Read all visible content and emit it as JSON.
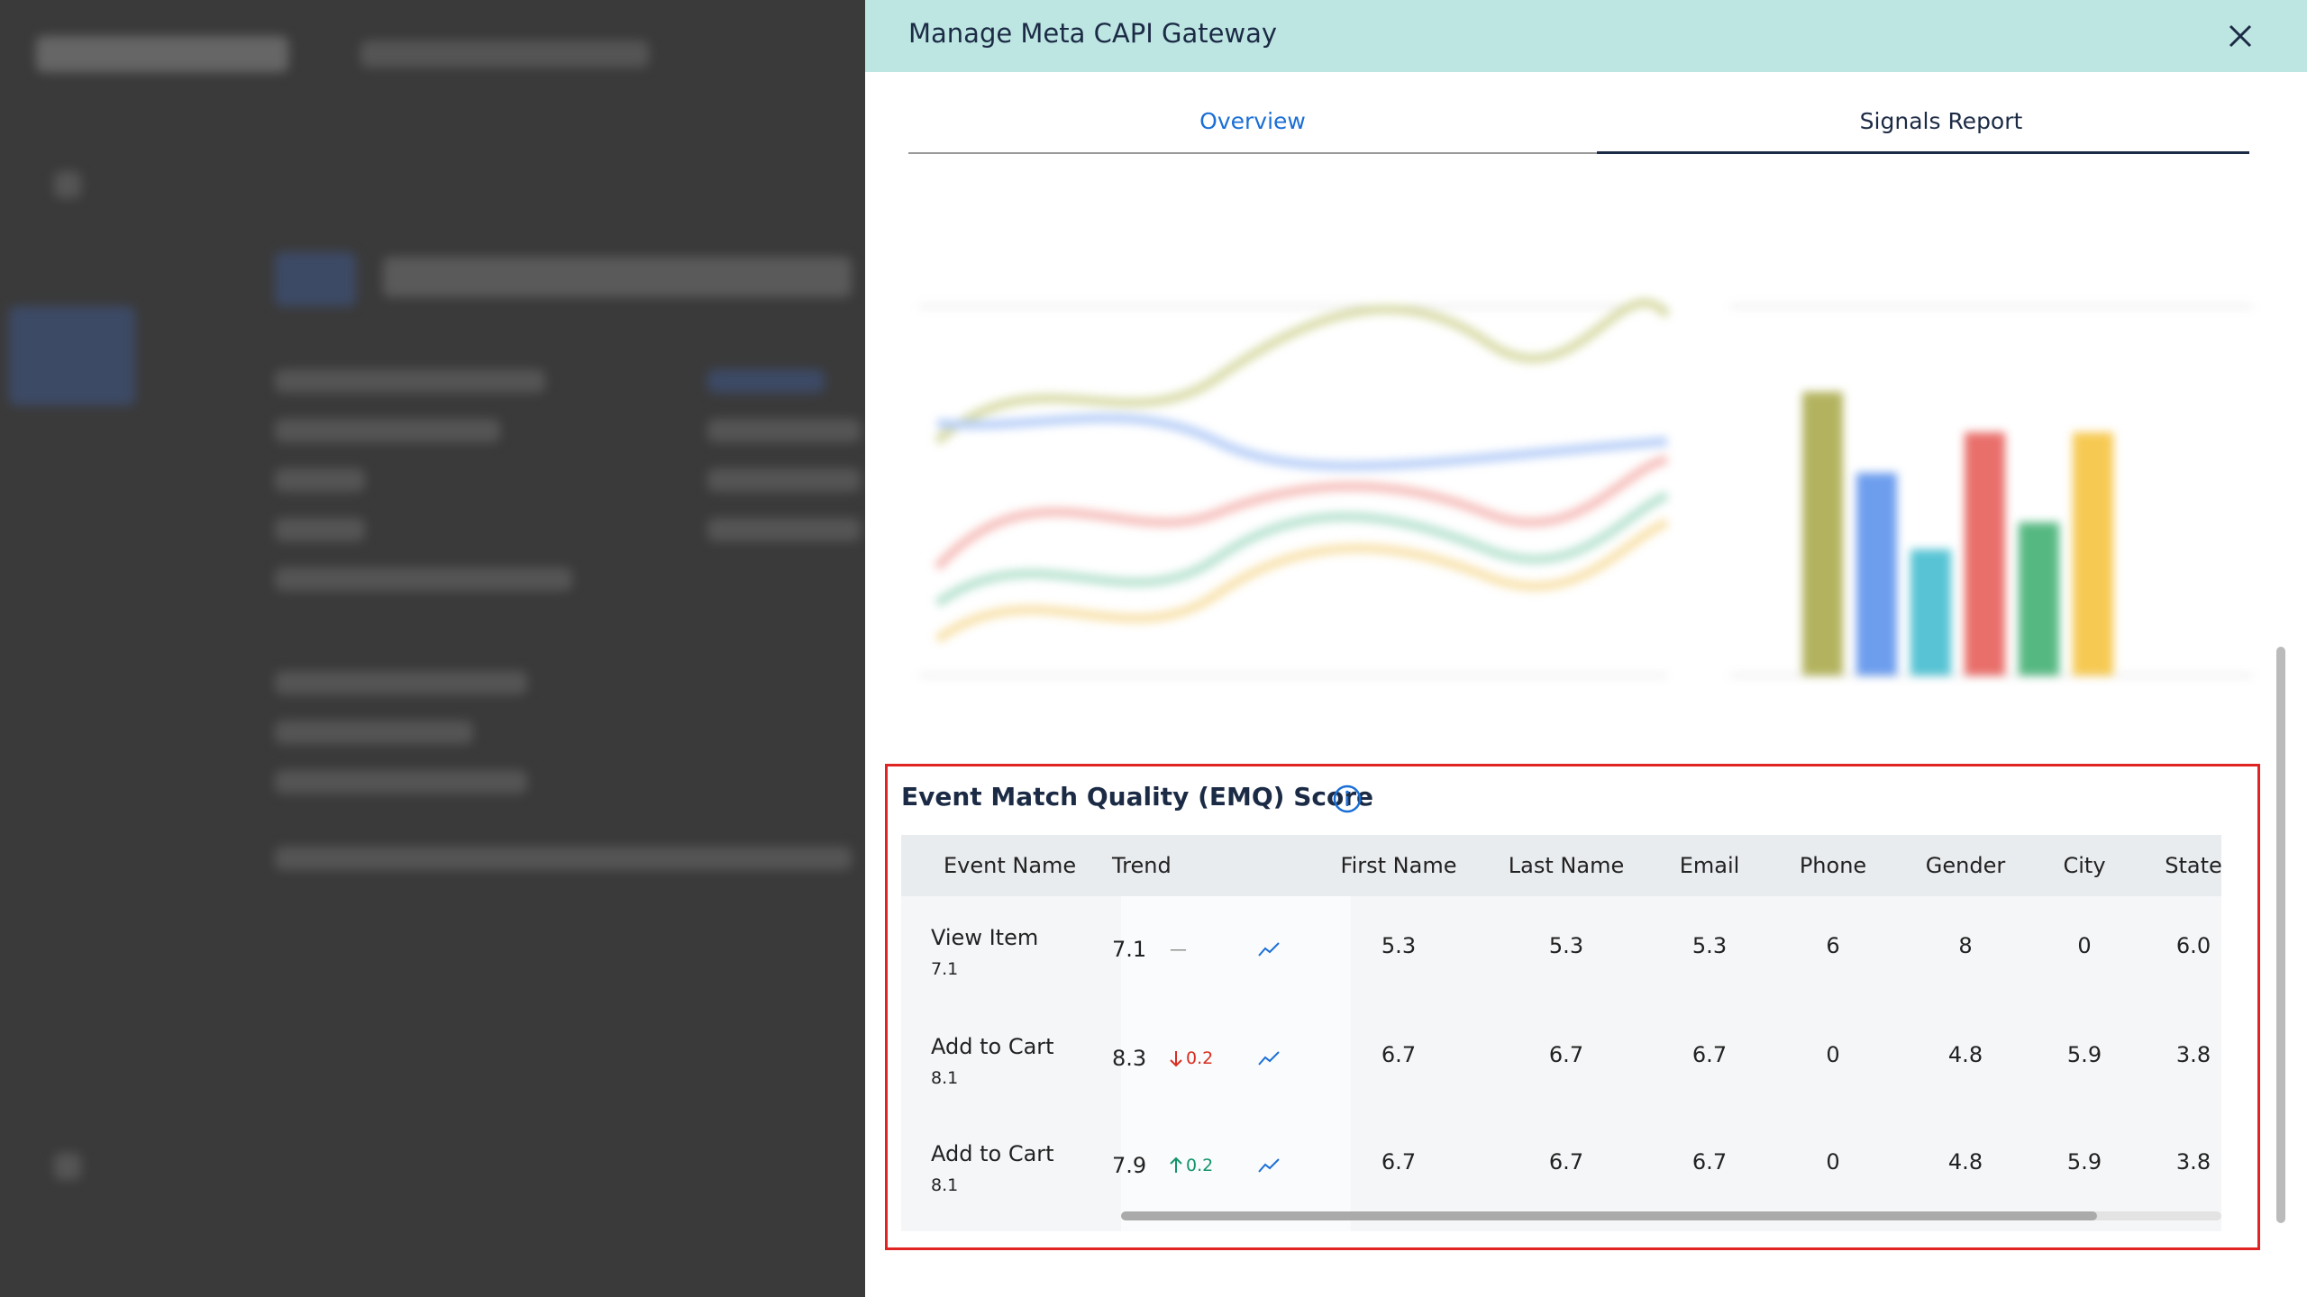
{
  "panel": {
    "title": "Manage Meta CAPI Gateway",
    "tabs": [
      "Overview",
      "Signals Report"
    ],
    "emq": {
      "title": "Event Match Quality (EMQ) Score",
      "columns": [
        "Event Name",
        "Trend",
        "First Name",
        "Last Name",
        "Email",
        "Phone",
        "Gender",
        "City",
        "State"
      ],
      "rows": [
        {
          "name": "View Item",
          "sub": "7.1",
          "trend": "7.1",
          "change": {
            "direction": "none",
            "label": "—"
          },
          "values": [
            "5.3",
            "5.3",
            "5.3",
            "6",
            "8",
            "0",
            "6.0"
          ]
        },
        {
          "name": "Add to Cart",
          "sub": "8.1",
          "trend": "8.3",
          "change": {
            "direction": "down",
            "label": "0.2"
          },
          "values": [
            "6.7",
            "6.7",
            "6.7",
            "0",
            "4.8",
            "5.9",
            "3.8"
          ]
        },
        {
          "name": "Add to Cart",
          "sub": "8.1",
          "trend": "7.9",
          "change": {
            "direction": "up",
            "label": "0.2"
          },
          "values": [
            "6.7",
            "6.7",
            "6.7",
            "0",
            "4.8",
            "5.9",
            "3.8"
          ]
        }
      ]
    }
  }
}
